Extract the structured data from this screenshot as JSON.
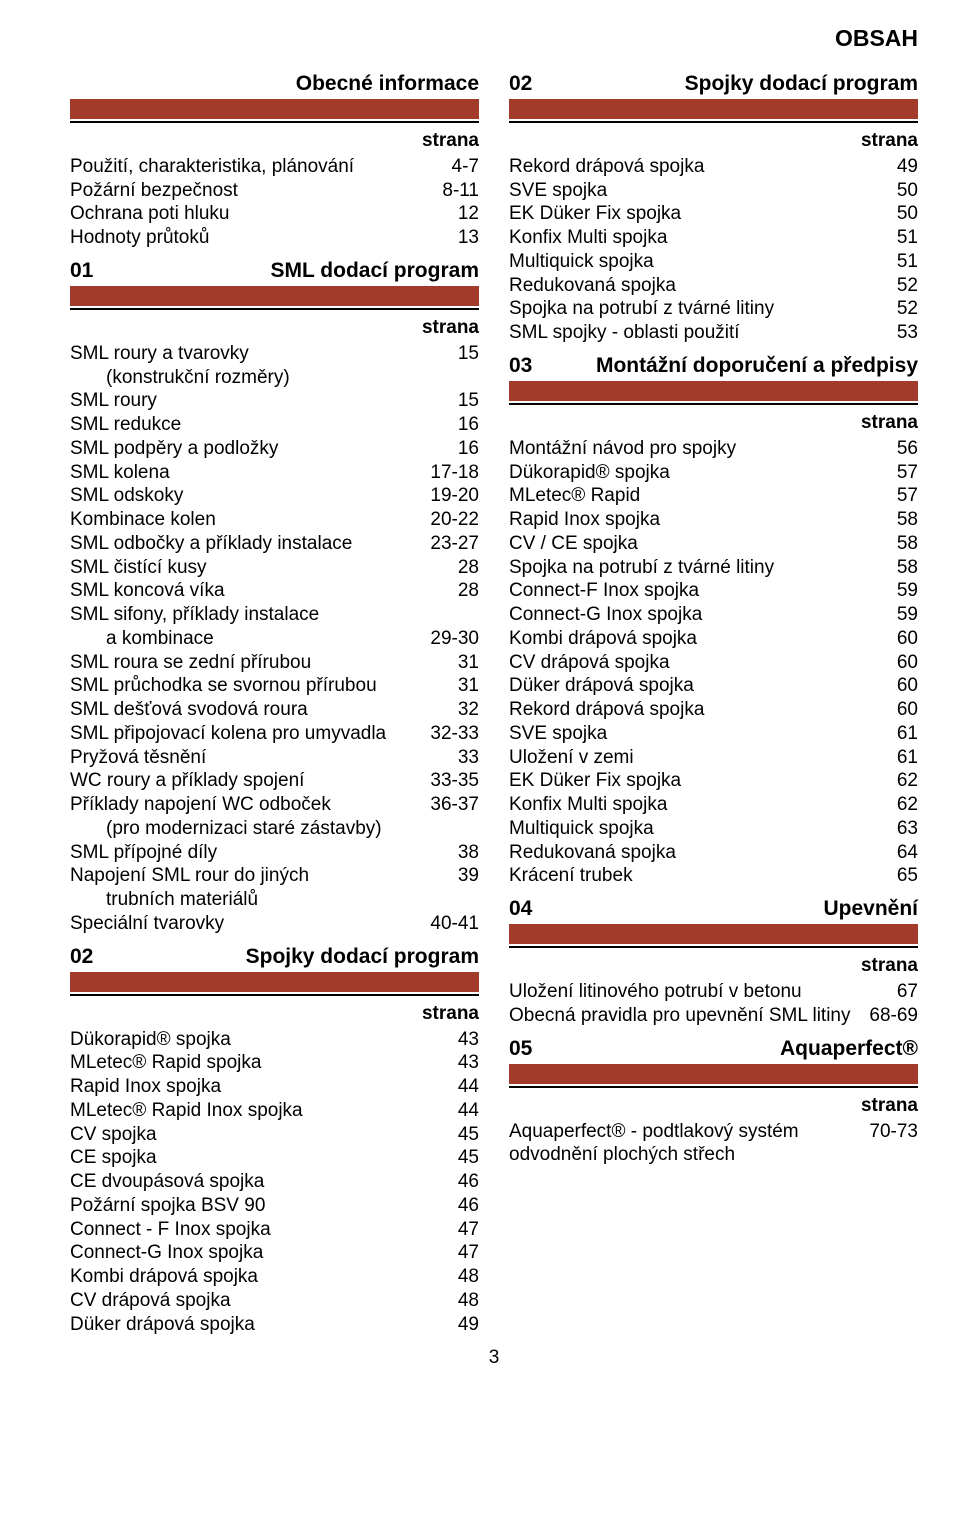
{
  "colors": {
    "red_bar": "#a33b2a",
    "black": "#000000",
    "white": "#ffffff"
  },
  "obsah": "OBSAH",
  "strana_label": "strana",
  "page_number": "3",
  "left_sections": [
    {
      "num": "",
      "title": "Obecné informace",
      "items": [
        {
          "label": "Použití, charakteristika, plánování",
          "val": "4-7"
        },
        {
          "label": "Požární bezpečnost",
          "val": "8-11"
        },
        {
          "label": "Ochrana poti hluku",
          "val": "12"
        },
        {
          "label": "Hodnoty průtoků",
          "val": "13"
        }
      ]
    },
    {
      "num": "01",
      "title": "SML dodací program",
      "items": [
        {
          "label": "SML roury a tvarovky",
          "val": "15"
        },
        {
          "label": "(konstrukční rozměry)",
          "val": "",
          "sub": true
        },
        {
          "label": "SML roury",
          "val": "15"
        },
        {
          "label": "SML redukce",
          "val": "16"
        },
        {
          "label": "SML podpěry a podložky",
          "val": "16"
        },
        {
          "label": "SML kolena",
          "val": "17-18"
        },
        {
          "label": "SML odskoky",
          "val": "19-20"
        },
        {
          "label": "Kombinace kolen",
          "val": "20-22"
        },
        {
          "label": "SML odbočky a příklady instalace",
          "val": "23-27"
        },
        {
          "label": "SML čistící kusy",
          "val": "28"
        },
        {
          "label": "SML koncová víka",
          "val": "28"
        },
        {
          "label": "SML sifony, příklady instalace",
          "val": ""
        },
        {
          "label": "a kombinace",
          "val": "29-30",
          "sub": true
        },
        {
          "label": "SML roura se zední přírubou",
          "val": "31"
        },
        {
          "label": "SML průchodka se svornou přírubou",
          "val": "31"
        },
        {
          "label": "SML dešťová svodová roura",
          "val": "32"
        },
        {
          "label": "SML připojovací kolena pro umyvadla",
          "val": "32-33"
        },
        {
          "label": "Pryžová těsnění",
          "val": "33"
        },
        {
          "label": "WC roury a příklady spojení",
          "val": "33-35"
        },
        {
          "label": "Příklady napojení WC odboček",
          "val": "36-37"
        },
        {
          "label": "(pro modernizaci staré zástavby)",
          "val": "",
          "sub": true
        },
        {
          "label": "SML přípojné díly",
          "val": "38"
        },
        {
          "label": "Napojení SML rour do jiných",
          "val": "39"
        },
        {
          "label": "trubních materiálů",
          "val": "",
          "sub": true
        },
        {
          "label": "Speciální tvarovky",
          "val": "40-41"
        }
      ]
    },
    {
      "num": "02",
      "title": "Spojky dodací program",
      "items": [
        {
          "label": "Dükorapid® spojka",
          "val": "43"
        },
        {
          "label": "MLetec® Rapid spojka",
          "val": "43"
        },
        {
          "label": "Rapid Inox spojka",
          "val": "44"
        },
        {
          "label": "MLetec® Rapid Inox spojka",
          "val": "44"
        },
        {
          "label": "CV spojka",
          "val": "45"
        },
        {
          "label": "CE spojka",
          "val": "45"
        },
        {
          "label": "CE dvoupásová spojka",
          "val": "46"
        },
        {
          "label": "Požární spojka BSV 90",
          "val": "46"
        },
        {
          "label": "Connect - F Inox spojka",
          "val": "47"
        },
        {
          "label": "Connect-G Inox spojka",
          "val": "47"
        },
        {
          "label": "Kombi drápová spojka",
          "val": "48"
        },
        {
          "label": "CV drápová spojka",
          "val": "48"
        },
        {
          "label": "Düker drápová spojka",
          "val": "49"
        }
      ]
    }
  ],
  "right_sections": [
    {
      "num": "02",
      "title": "Spojky dodací program",
      "items": [
        {
          "label": "Rekord drápová spojka",
          "val": "49"
        },
        {
          "label": "SVE spojka",
          "val": "50"
        },
        {
          "label": "EK Düker Fix spojka",
          "val": "50"
        },
        {
          "label": "Konfix Multi spojka",
          "val": "51"
        },
        {
          "label": "Multiquick spojka",
          "val": "51"
        },
        {
          "label": "Redukovaná spojka",
          "val": "52"
        },
        {
          "label": "Spojka na potrubí z tvárné litiny",
          "val": "52"
        },
        {
          "label": "SML spojky - oblasti použití",
          "val": "53"
        }
      ]
    },
    {
      "num": "03",
      "title": "Montážní doporučení a předpisy",
      "items": [
        {
          "label": "Montážní návod pro spojky",
          "val": "56"
        },
        {
          "label": "Dükorapid® spojka",
          "val": "57"
        },
        {
          "label": "MLetec® Rapid",
          "val": "57"
        },
        {
          "label": "Rapid Inox spojka",
          "val": "58"
        },
        {
          "label": "CV / CE spojka",
          "val": "58"
        },
        {
          "label": "Spojka na potrubí z tvárné litiny",
          "val": "58"
        },
        {
          "label": "Connect-F Inox spojka",
          "val": "59"
        },
        {
          "label": "Connect-G Inox spojka",
          "val": "59"
        },
        {
          "label": "Kombi drápová spojka",
          "val": "60"
        },
        {
          "label": "CV drápová spojka",
          "val": "60"
        },
        {
          "label": "Düker drápová spojka",
          "val": "60"
        },
        {
          "label": "Rekord drápová spojka",
          "val": "60"
        },
        {
          "label": "SVE spojka",
          "val": "61"
        },
        {
          "label": "Uložení v zemi",
          "val": "61"
        },
        {
          "label": "EK Düker Fix spojka",
          "val": "62"
        },
        {
          "label": "Konfix Multi spojka",
          "val": "62"
        },
        {
          "label": "Multiquick spojka",
          "val": "63"
        },
        {
          "label": "Redukovaná spojka",
          "val": "64"
        },
        {
          "label": "Krácení trubek",
          "val": "65"
        }
      ]
    },
    {
      "num": "04",
      "title": "Upevnění",
      "items": [
        {
          "label": "Uložení litinového potrubí v betonu",
          "val": "67"
        },
        {
          "label": "Obecná pravidla pro upevnění SML litiny",
          "val": "68-69"
        }
      ]
    },
    {
      "num": "05",
      "title": "Aquaperfect®",
      "items": [
        {
          "label": "Aquaperfect® - podtlakový systém",
          "val": "70-73"
        },
        {
          "label": "odvodnění plochých střech",
          "val": ""
        }
      ]
    }
  ]
}
